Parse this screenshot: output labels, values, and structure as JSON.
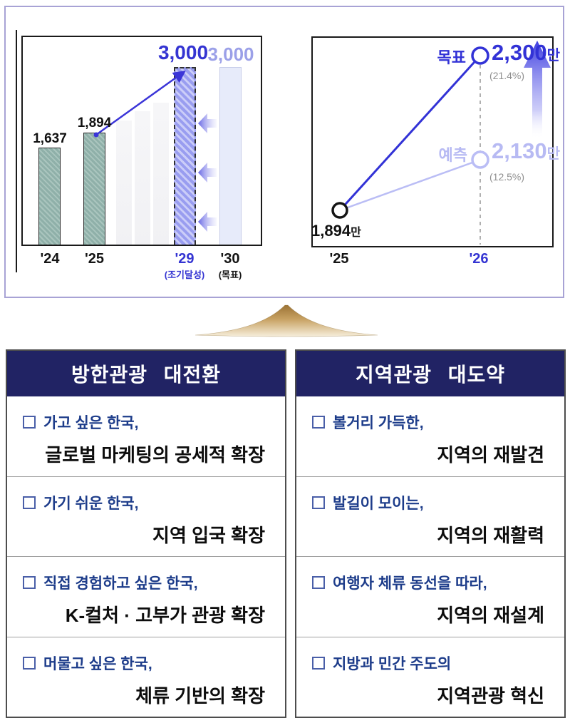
{
  "colors": {
    "accent_blue": "#3232d6",
    "soft_purple": "#b7baf3",
    "navy_header": "#212364",
    "teal_bar": "#8fb0a9",
    "purple_bar": "#999df0",
    "gold_arrow": "#a87c3e",
    "row_title_blue": "#1d3c8a"
  },
  "icons": {
    "row_bullet": "empty-square-checkbox",
    "divider": "gold-up-arrow",
    "shift": "left-fade-arrow",
    "growth": "up-fade-arrow"
  },
  "chart_data": [
    {
      "type": "bar",
      "categories": [
        "'24",
        "'25",
        "",
        "",
        "",
        "'29",
        "'30"
      ],
      "values": [
        1637,
        1894,
        2100,
        2250,
        2400,
        3000,
        3000
      ],
      "value_labels": [
        "1,637",
        "1,894",
        null,
        null,
        null,
        "3,000",
        "3,000"
      ],
      "category_notes": {
        "'29": "(조기달성)",
        "'30": "(목표)"
      },
      "bar_styles": [
        "actual",
        "actual",
        "projection-ghost",
        "projection-ghost",
        "projection-ghost",
        "early-target-hatched",
        "target-light"
      ],
      "ylim": [
        0,
        3100
      ],
      "grid": false,
      "annotations": [
        "trend arrow from '25 bar top to '29 bar top",
        "three left arrows shifting '30 target to '29"
      ]
    },
    {
      "type": "line",
      "x": [
        "'25",
        "'26"
      ],
      "series": [
        {
          "name": "목표",
          "values": [
            1894,
            2300
          ],
          "point_labels": [
            "1,894만",
            "2,300만"
          ],
          "growth_label": "(21.4%)",
          "color": "#3232d6"
        },
        {
          "name": "예측",
          "values": [
            1894,
            2130
          ],
          "point_labels": [
            null,
            "2,130만"
          ],
          "growth_label": "(12.5%)",
          "color": "#b7baf3"
        }
      ],
      "unit": "만",
      "grid": false,
      "annotations": [
        "dashed vertical guide at '26",
        "blue gradient up arrow at right"
      ]
    }
  ],
  "top": {
    "left_chart": {
      "labels": {
        "v24": "1,637",
        "v25": "1,894",
        "v29": "3,000",
        "v30": "3,000"
      },
      "x24": "'24",
      "x25": "'25",
      "x29": "'29",
      "x29_note": "(조기달성)",
      "x30": "'30",
      "x30_note": "(목표)"
    },
    "right_chart": {
      "target_name": "목표",
      "target_value": "2,300",
      "target_unit": "만",
      "target_pct": "(21.4%)",
      "forecast_name": "예측",
      "forecast_value": "2,130",
      "forecast_unit": "만",
      "forecast_pct": "(12.5%)",
      "start_value": "1,894",
      "start_unit": "만",
      "x25": "'25",
      "x26": "'26"
    }
  },
  "panels": {
    "left": {
      "title": "방한관광 대전환",
      "rows": [
        {
          "line1": "가고 싶은 한국,",
          "line2": "글로벌 마케팅의 공세적 확장"
        },
        {
          "line1": "가기 쉬운 한국,",
          "line2": "지역 입국 확장"
        },
        {
          "line1": "직접 경험하고 싶은 한국,",
          "line2": "K-컬처 · 고부가 관광 확장"
        },
        {
          "line1": "머물고 싶은 한국,",
          "line2": "체류 기반의 확장"
        }
      ]
    },
    "right": {
      "title": "지역관광 대도약",
      "rows": [
        {
          "line1": "볼거리 가득한,",
          "line2": "지역의 재발견"
        },
        {
          "line1": "발길이 모이는,",
          "line2": "지역의 재활력"
        },
        {
          "line1": "여행자 체류 동선을 따라,",
          "line2": "지역의 재설계"
        },
        {
          "line1": "지방과 민간 주도의",
          "line2": "지역관광 혁신"
        }
      ]
    }
  }
}
